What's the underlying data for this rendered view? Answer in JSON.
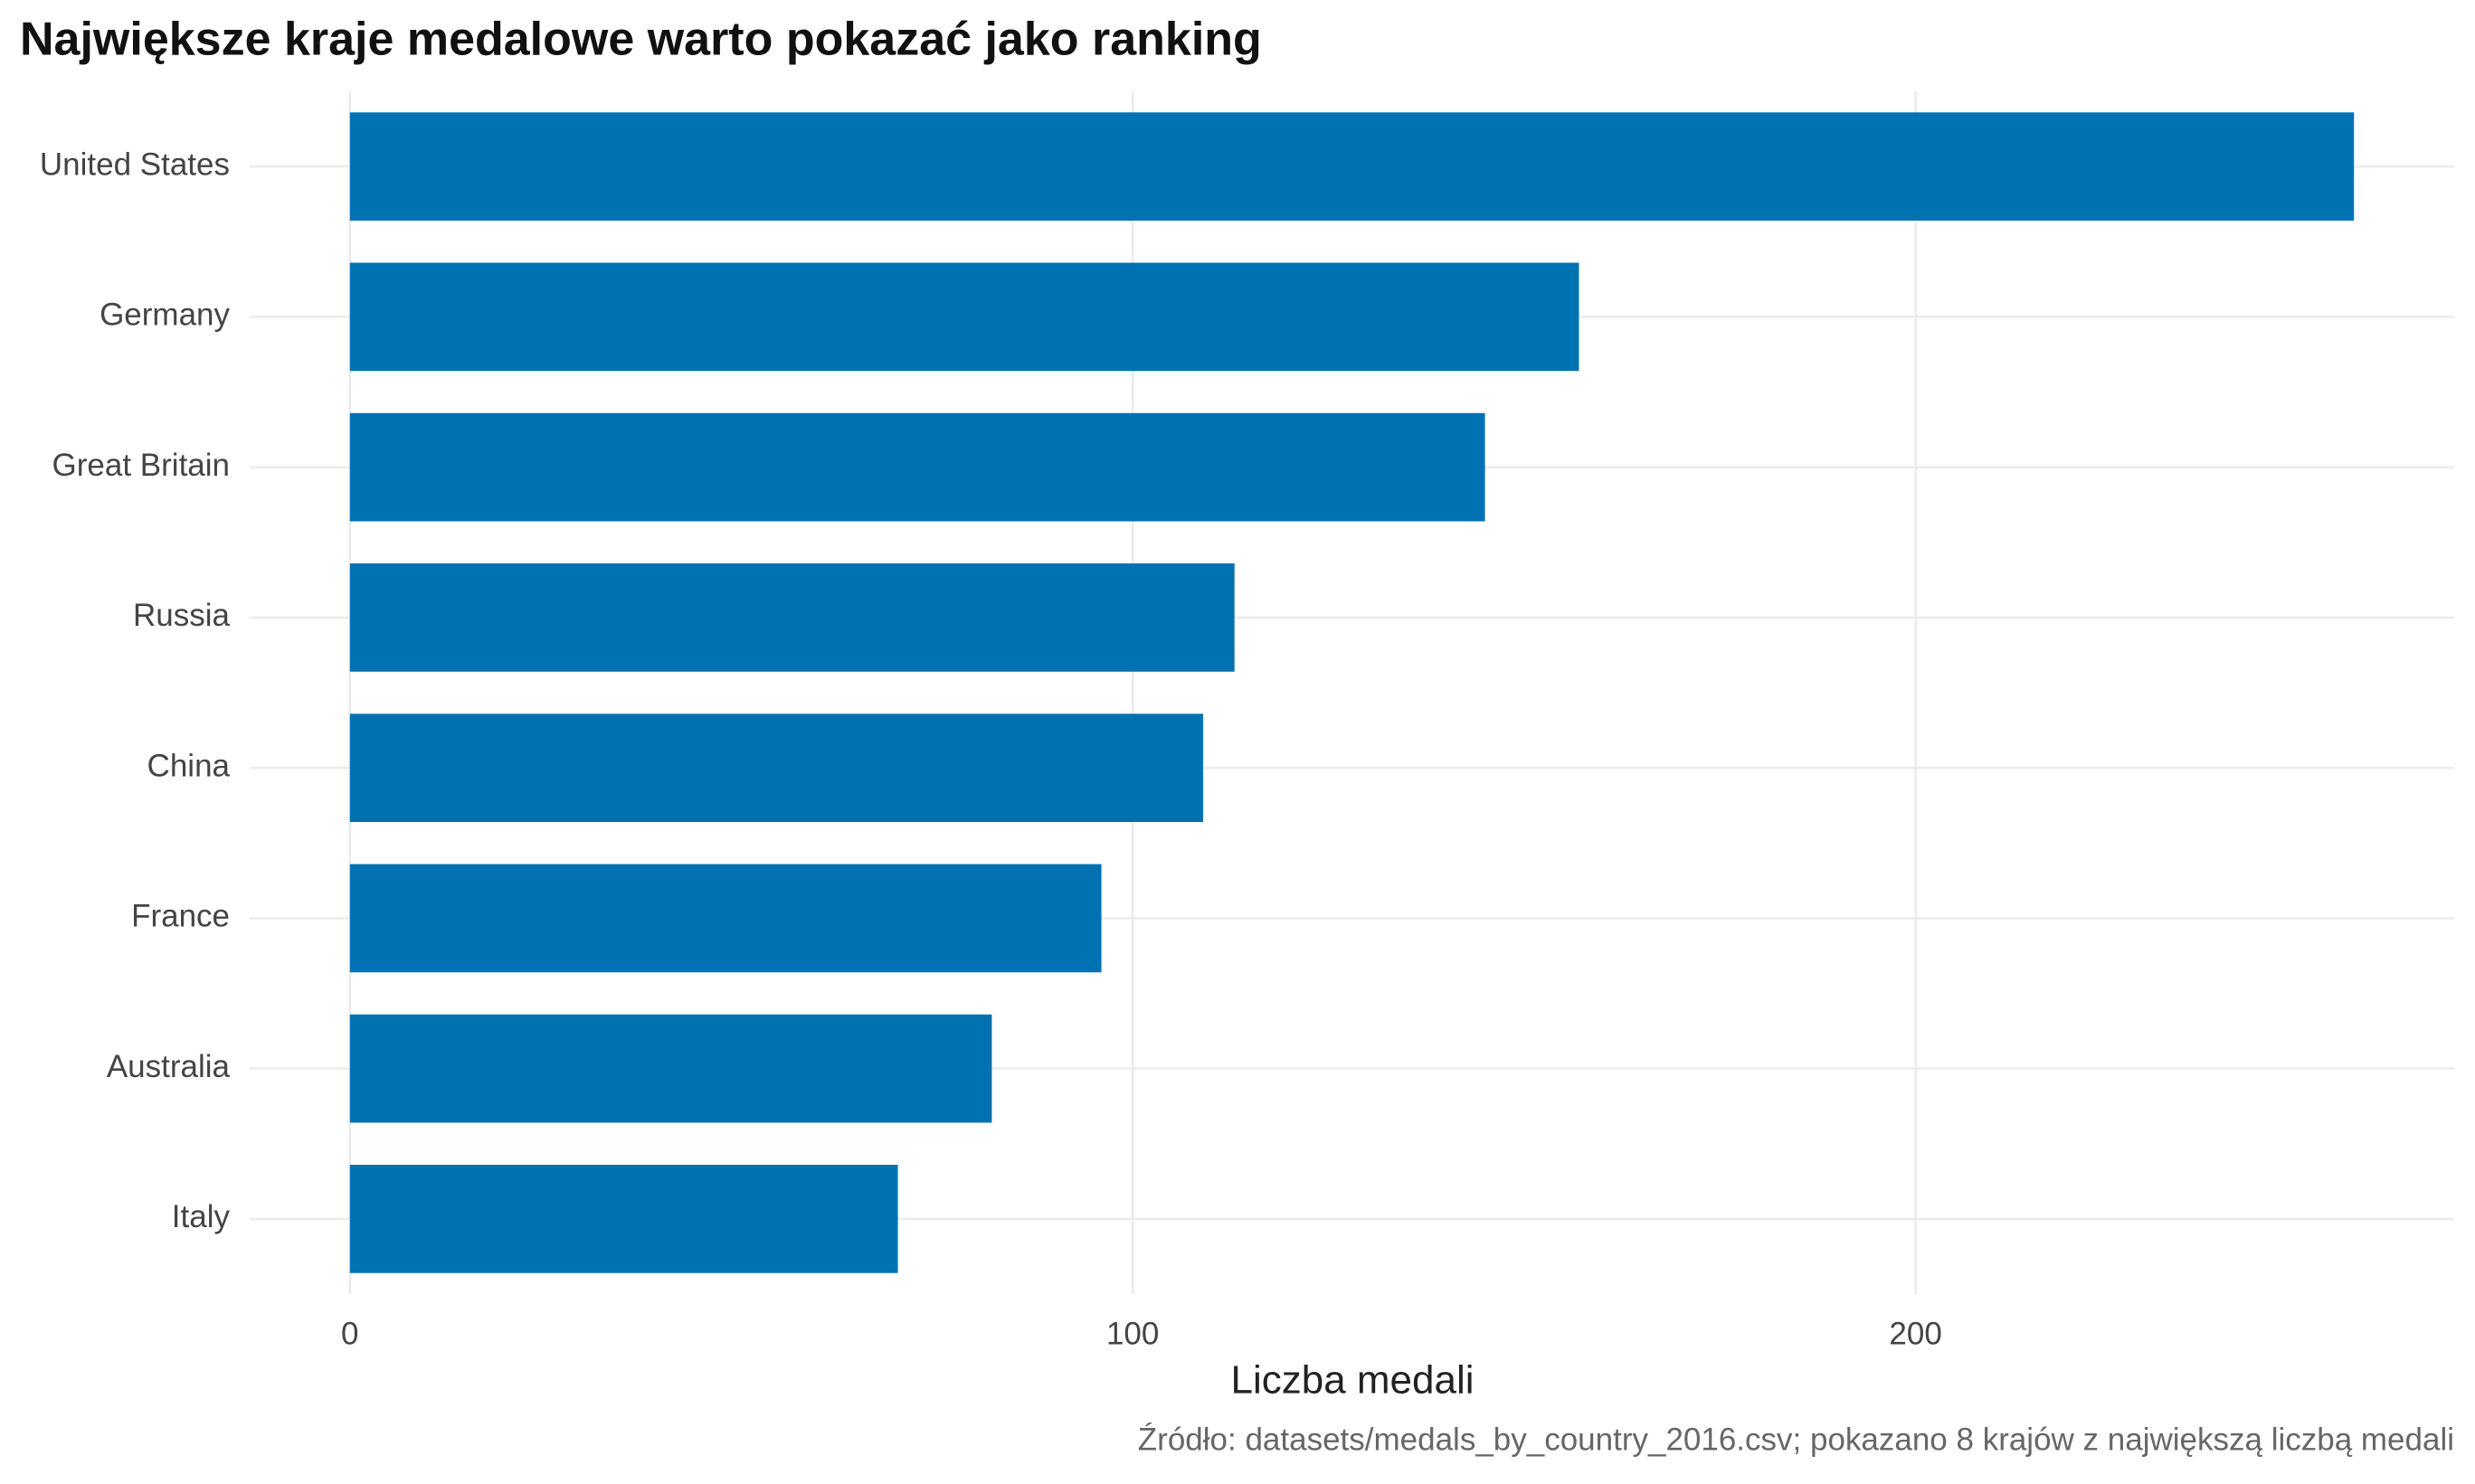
{
  "chart_data": {
    "type": "bar",
    "orientation": "horizontal",
    "title": "Największe kraje medalowe warto pokazać jako ranking",
    "x_label": "Liczba medali",
    "caption": "Źródło: datasets/medals_by_country_2016.csv; pokazano 8 krajów z największą liczbą medali",
    "categories": [
      "United States",
      "Germany",
      "Great Britain",
      "Russia",
      "China",
      "France",
      "Australia",
      "Italy"
    ],
    "values": [
      256,
      157,
      145,
      113,
      109,
      96,
      82,
      70
    ],
    "color": "#0072b2",
    "xlim": [
      -12.8,
      268.8
    ],
    "xticks": [
      0,
      100,
      200
    ],
    "grid": true
  }
}
